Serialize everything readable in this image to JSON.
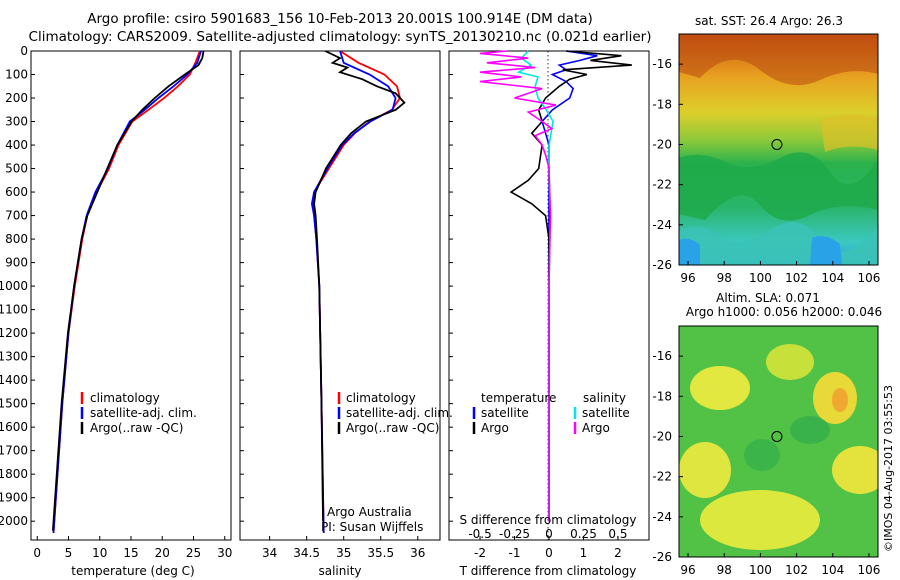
{
  "header": {
    "title_line1": "Argo profile: csiro 5901683_156 10-Feb-2013 20.001S 100.914E (DM data)",
    "title_line2": "Climatology: CARS2009. Satellite-adjusted climatology: synTS_20130210.nc (0.021d earlier)"
  },
  "colors": {
    "climatology": "#ff0000",
    "satellite": "#0000ff",
    "argo": "#000000",
    "sat_salinity": "#00e5e5",
    "argo_salinity": "#ff00ff"
  },
  "chart_data": [
    {
      "type": "line",
      "id": "temperature",
      "xlabel": "temperature (deg C)",
      "ylabel": "",
      "xlim": [
        -1,
        31
      ],
      "ylim": [
        2080,
        0
      ],
      "xticks": [
        "0",
        "5",
        "10",
        "15",
        "20",
        "25",
        "30"
      ],
      "yticks": [
        "0",
        "100",
        "200",
        "300",
        "400",
        "500",
        "600",
        "700",
        "800",
        "900",
        "1000",
        "1100",
        "1200",
        "1300",
        "1400",
        "1500",
        "1600",
        "1700",
        "1800",
        "1900",
        "2000"
      ],
      "legend": [
        "climatology",
        "satellite-adj. clim.",
        "Argo(..raw -QC)"
      ],
      "series": [
        {
          "name": "climatology",
          "depth": [
            0,
            50,
            100,
            150,
            200,
            250,
            300,
            400,
            500,
            600,
            700,
            800,
            1000,
            1200,
            1500,
            2050
          ],
          "values": [
            26,
            25.3,
            24.4,
            22.5,
            20.3,
            17.8,
            15.2,
            13,
            11.5,
            9.5,
            8,
            7.2,
            6,
            5,
            4,
            2.6
          ]
        },
        {
          "name": "satellite-adj. clim.",
          "depth": [
            0,
            50,
            100,
            150,
            200,
            250,
            300,
            400,
            500,
            600,
            700,
            800,
            1000,
            1200,
            1500,
            2050
          ],
          "values": [
            26.2,
            25.6,
            24,
            21.8,
            19.4,
            17.2,
            14.8,
            12.8,
            11.3,
            9.3,
            7.9,
            7.1,
            5.9,
            5,
            4,
            2.6
          ]
        },
        {
          "name": "Argo(..raw -QC)",
          "depth": [
            0,
            30,
            60,
            100,
            150,
            200,
            250,
            300,
            400,
            500,
            600,
            700,
            800,
            1000,
            1200,
            1500,
            2040
          ],
          "values": [
            26.6,
            26.4,
            25.8,
            23.6,
            21,
            18.8,
            16.8,
            15.1,
            12.8,
            11.2,
            9.6,
            8,
            7.1,
            5.9,
            4.9,
            3.9,
            2.5
          ]
        }
      ]
    },
    {
      "type": "line",
      "id": "salinity",
      "xlabel": "salinity",
      "xlim": [
        33.6,
        36.3
      ],
      "ylim": [
        2080,
        0
      ],
      "xticks": [
        "34",
        "34.5",
        "35",
        "35.5",
        "36"
      ],
      "legend": [
        "climatology",
        "satellite-adj. clim.",
        "Argo(..raw -QC)"
      ],
      "annotations": [
        "Argo Australia",
        "PI: Susan Wijffels"
      ],
      "series": [
        {
          "name": "climatology",
          "depth": [
            0,
            50,
            100,
            150,
            200,
            250,
            300,
            350,
            400,
            500,
            600,
            650,
            700,
            800,
            1000,
            1500,
            2050
          ],
          "values": [
            34.95,
            35.2,
            35.55,
            35.72,
            35.76,
            35.65,
            35.35,
            35.15,
            35.0,
            34.8,
            34.6,
            34.58,
            34.6,
            34.63,
            34.67,
            34.7,
            34.73
          ]
        },
        {
          "name": "satellite-adj. clim.",
          "depth": [
            0,
            50,
            100,
            150,
            200,
            250,
            300,
            350,
            400,
            500,
            600,
            650,
            700,
            800,
            1000,
            1500,
            2050
          ],
          "values": [
            34.95,
            35.0,
            35.35,
            35.6,
            35.7,
            35.66,
            35.36,
            35.14,
            34.98,
            34.78,
            34.6,
            34.57,
            34.6,
            34.63,
            34.67,
            34.7,
            34.73
          ]
        },
        {
          "name": "Argo(..raw -QC)",
          "depth": [
            0,
            30,
            50,
            70,
            90,
            120,
            150,
            180,
            220,
            250,
            300,
            350,
            400,
            500,
            600,
            650,
            700,
            800,
            1000,
            1500,
            2000
          ],
          "values": [
            34.75,
            34.95,
            34.85,
            35.05,
            34.95,
            35.25,
            35.45,
            35.7,
            35.82,
            35.7,
            35.3,
            35.1,
            34.96,
            34.76,
            34.62,
            34.6,
            34.62,
            34.64,
            34.67,
            34.7,
            34.72
          ]
        }
      ]
    },
    {
      "type": "line",
      "id": "differences",
      "xlabel": "T difference from climatology",
      "xlabel_top": "S difference from climatology",
      "xlim": [
        -2.9,
        2.9
      ],
      "ylim": [
        2080,
        0
      ],
      "xticks": [
        "-2",
        "-1",
        "0",
        "1",
        "2"
      ],
      "xticks_s": [
        "-0.5",
        "-0.25",
        "0",
        "0.25",
        "0.5"
      ],
      "legend_headers": [
        "temperature",
        "salinity"
      ],
      "legend": [
        "satellite",
        "Argo",
        "satellite",
        "Argo"
      ],
      "series": [
        {
          "name": "T satellite",
          "depth": [
            0,
            20,
            40,
            60,
            80,
            100,
            130,
            160,
            200,
            250,
            300,
            350,
            400,
            500,
            600,
            700,
            800,
            1000,
            1500,
            2000
          ],
          "values": [
            0.5,
            1.4,
            0.9,
            0.3,
            0.5,
            0.1,
            0.5,
            0.7,
            0.6,
            0.1,
            -0.2,
            -0.1,
            0,
            0,
            0,
            0,
            0,
            0,
            0,
            0
          ]
        },
        {
          "name": "T Argo",
          "depth": [
            0,
            20,
            40,
            60,
            80,
            100,
            120,
            150,
            200,
            250,
            300,
            350,
            400,
            500,
            550,
            600,
            650,
            700,
            800,
            1000,
            1500,
            2000
          ],
          "values": [
            0.5,
            2.1,
            1.2,
            2.4,
            0.4,
            1.1,
            0.6,
            0.3,
            -0.1,
            -0.3,
            -0.2,
            -0.5,
            -0.2,
            -0.3,
            -0.6,
            -1.1,
            -0.5,
            -0.1,
            0,
            0,
            0,
            0
          ]
        },
        {
          "name": "S satellite",
          "depth": [
            0,
            30,
            60,
            90,
            110,
            150,
            200,
            250,
            300,
            400,
            500,
            700,
            1000,
            1500,
            2000
          ],
          "values": [
            -0.15,
            -0.2,
            -0.13,
            -0.22,
            -0.08,
            -0.1,
            -0.08,
            -0.02,
            0.03,
            0,
            0,
            0.01,
            0,
            0,
            0
          ]
        },
        {
          "name": "S Argo",
          "depth": [
            0,
            10,
            30,
            50,
            70,
            90,
            110,
            130,
            160,
            200,
            230,
            260,
            300,
            330,
            360,
            400,
            450,
            500,
            700,
            1000,
            1500,
            2000
          ],
          "values": [
            -0.3,
            -0.5,
            -0.15,
            -0.45,
            -0.1,
            -0.5,
            -0.2,
            -0.5,
            -0.05,
            -0.25,
            0.05,
            -0.15,
            -0.05,
            0.02,
            -0.1,
            -0.05,
            -0.02,
            0,
            0.01,
            0,
            0,
            0
          ]
        }
      ]
    },
    {
      "type": "heatmap",
      "id": "sst_map",
      "title": "sat. SST: 26.4 Argo: 26.3",
      "xlim": [
        95.5,
        106.5
      ],
      "ylim": [
        -26,
        -14.5
      ],
      "xticks": [
        "96",
        "98",
        "100",
        "102",
        "104",
        "106"
      ],
      "yticks": [
        "-16",
        "-18",
        "-20",
        "-22",
        "-24",
        "-26"
      ],
      "marker": {
        "lon": 100.914,
        "lat": -20.001
      }
    },
    {
      "type": "heatmap",
      "id": "sla_map",
      "title": "Altim. SLA: 0.071",
      "subtitle": "Argo h1000: 0.056 h2000: 0.046",
      "xlim": [
        95.5,
        106.5
      ],
      "ylim": [
        -26,
        -14.5
      ],
      "xticks": [
        "96",
        "98",
        "100",
        "102",
        "104",
        "106"
      ],
      "yticks": [
        "-16",
        "-18",
        "-20",
        "-22",
        "-24",
        "-26"
      ],
      "marker": {
        "lon": 100.914,
        "lat": -20.001
      }
    }
  ],
  "footer": {
    "credit": "©IMOS 04-Aug-2017 03:55:53"
  }
}
